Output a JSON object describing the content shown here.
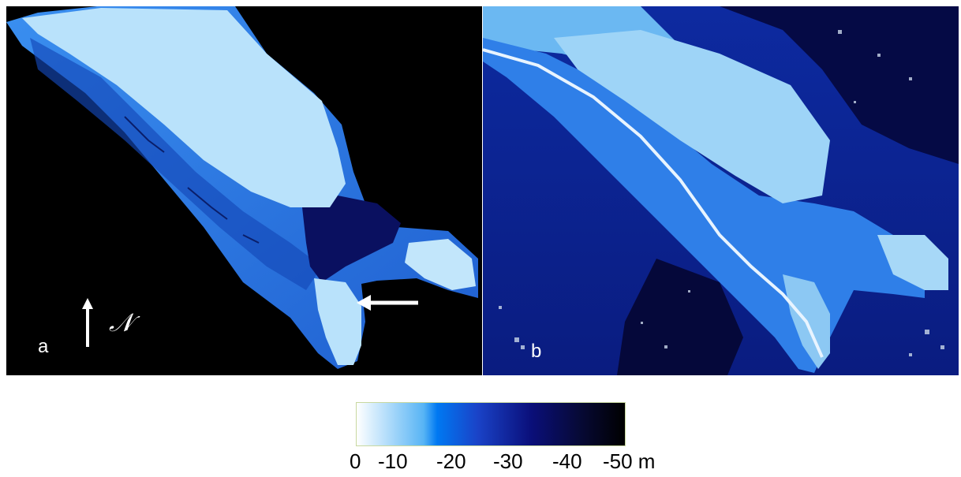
{
  "panels": {
    "a": {
      "label": "a",
      "north_symbol": "𝒩",
      "icons": [
        "north-arrow-icon",
        "pointer-arrow-icon"
      ]
    },
    "b": {
      "label": "b"
    }
  },
  "colorbar": {
    "ticks": [
      "0",
      "-10",
      "-20",
      "-30",
      "-40",
      "-50 m"
    ],
    "colors": {
      "shallow": "#ffffff",
      "mid": "#0079f2",
      "deep": "#0a0f7a",
      "deepest": "#000000"
    }
  }
}
